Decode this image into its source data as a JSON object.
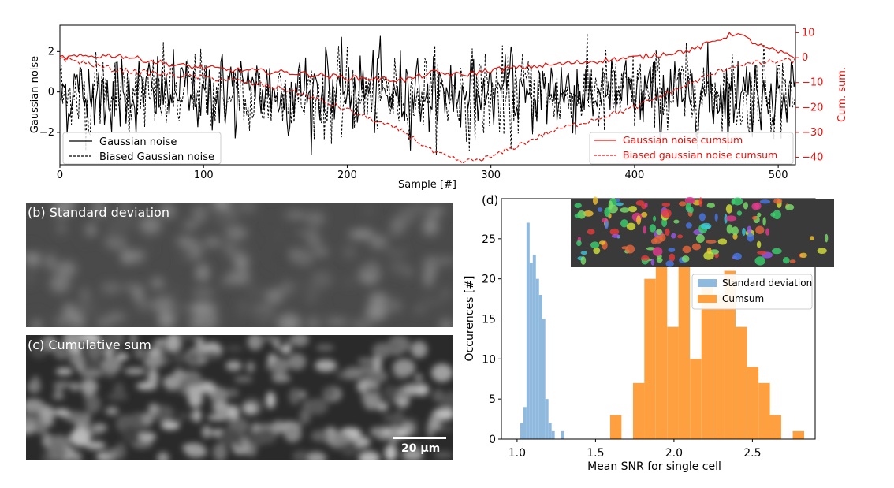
{
  "chart_data": [
    {
      "panel": "a",
      "type": "line",
      "xlabel": "Sample [#]",
      "ylabel": "Gaussian noise",
      "y2label": "Cum. sum.",
      "xlim": [
        0,
        512
      ],
      "ylim": [
        -3.6,
        3.3
      ],
      "y2lim": [
        -43,
        13
      ],
      "xticks": [
        0,
        100,
        200,
        300,
        400,
        500
      ],
      "yticks": [
        -2,
        0,
        2
      ],
      "y2ticks": [
        -40,
        -30,
        -20,
        -10,
        0,
        10
      ],
      "legend_left": [
        "Gaussian noise",
        "Biased Gaussian noise"
      ],
      "legend_right": [
        "Gaussian noise cumsum",
        "Biased gaussian noise cumsum"
      ],
      "legend_left_placement": "lower-left",
      "legend_right_placement": "lower-right",
      "cumsum_keypoints": {
        "x": [
          0,
          40,
          80,
          120,
          160,
          200,
          240,
          260,
          280,
          300,
          340,
          400,
          440,
          470,
          490,
          512
        ],
        "gaussian_cumsum": [
          0,
          1,
          -3,
          -5,
          -6,
          -8,
          -9,
          -6,
          -7,
          -5,
          -3,
          0,
          3,
          10,
          4,
          0
        ],
        "biased_gaussian_cumsum": [
          0,
          -5,
          -7,
          -9,
          -13,
          -21,
          -30,
          -38,
          -42,
          -40,
          -30,
          -20,
          -10,
          -3,
          -2,
          -1
        ]
      },
      "colors": {
        "noise": "#000000",
        "cumsum": "#e8120c"
      }
    },
    {
      "panel": "d",
      "type": "bar",
      "title": "(d)",
      "xlabel": "Mean SNR for single cell",
      "ylabel": "Occurences [#]",
      "xlim": [
        0.9,
        2.9
      ],
      "ylim": [
        0,
        30
      ],
      "xticks": [
        1.0,
        1.5,
        2.0,
        2.5
      ],
      "xtick_labels": [
        "1.0",
        "1.5",
        "2.0",
        "2.5"
      ],
      "yticks": [
        0,
        5,
        10,
        15,
        20,
        25
      ],
      "legend_placement": "center-right",
      "series": [
        {
          "name": "Standard deviation",
          "color": "#8fb9dd",
          "bin_width": 0.02,
          "bin_starts": [
            1.02,
            1.04,
            1.06,
            1.08,
            1.1,
            1.12,
            1.14,
            1.16,
            1.18,
            1.2,
            1.22,
            1.28
          ],
          "counts": [
            2,
            4,
            27,
            22,
            23,
            20,
            18,
            15,
            5,
            2,
            1,
            1
          ]
        },
        {
          "name": "Cumsum",
          "color": "#ffa040",
          "bin_width": 0.0727,
          "bin_starts": [
            1.593,
            1.739,
            1.811,
            1.884,
            1.957,
            2.029,
            2.102,
            2.175,
            2.248,
            2.32,
            2.393,
            2.466,
            2.539,
            2.611,
            2.757
          ],
          "counts": [
            3,
            7,
            20,
            22,
            14,
            24,
            10,
            19,
            18,
            21,
            14,
            9,
            7,
            3,
            1
          ]
        }
      ]
    }
  ],
  "panels": {
    "b": {
      "label": "(b) Standard deviation"
    },
    "c": {
      "label": "(c) Cumulative sum",
      "scalebar": "20 µm"
    }
  }
}
